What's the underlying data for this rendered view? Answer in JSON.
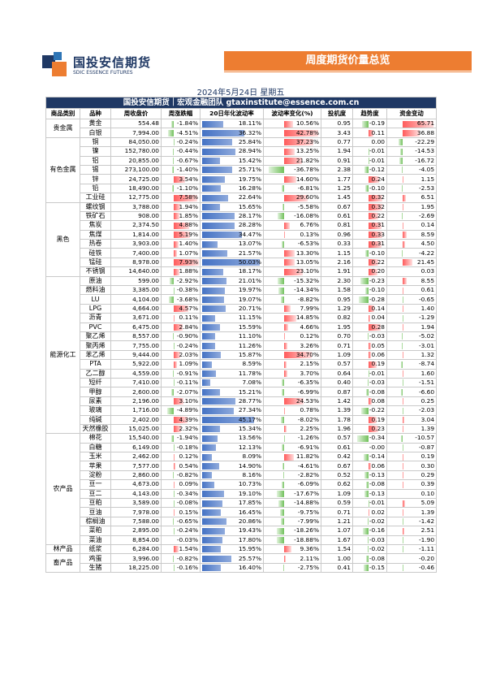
{
  "header": {
    "logo_cn": "国投安信期货",
    "logo_en": "SDIC ESSENCE FUTURES",
    "banner": "周度期货价量总览"
  },
  "date": "2024年5月24日 星期五",
  "table": {
    "caption": "国投安信期货｜宏观金融团队 gtaxinstitute@essence.com.cn",
    "columns": [
      "商品类别",
      "品种",
      "周收盘价",
      "周涨跌幅",
      "20日年化波动率",
      "波动率变化(%)",
      "投机度",
      "趋势度",
      "资金变动"
    ],
    "groups": [
      {
        "category": "贵金属",
        "rows": [
          [
            "黄金",
            "554.48",
            "-1.84%",
            "18.11%",
            "10.56%",
            "0.95",
            "-0.19",
            "65.71"
          ],
          [
            "白银",
            "7,994.00",
            "-4.51%",
            "36.32%",
            "42.78%",
            "3.43",
            "0.11",
            "36.88"
          ]
        ]
      },
      {
        "category": "有色金属",
        "rows": [
          [
            "铜",
            "84,050.00",
            "-0.24%",
            "25.84%",
            "37.23%",
            "0.77",
            "0.00",
            "-22.29"
          ],
          [
            "镍",
            "152,780.00",
            "-0.44%",
            "28.94%",
            "13.25%",
            "1.94",
            "-0.01",
            "-14.53"
          ],
          [
            "铝",
            "20,855.00",
            "-0.67%",
            "15.42%",
            "21.82%",
            "0.91",
            "-0.01",
            "-16.72"
          ],
          [
            "锡",
            "273,100.00",
            "-1.40%",
            "25.71%",
            "-36.78%",
            "2.38",
            "-0.12",
            "-4.05"
          ],
          [
            "锌",
            "24,725.00",
            "3.54%",
            "19.75%",
            "14.60%",
            "1.77",
            "0.24",
            "1.15"
          ],
          [
            "铅",
            "18,490.00",
            "-1.10%",
            "16.28%",
            "-6.81%",
            "1.25",
            "-0.10",
            "-2.53"
          ],
          [
            "工业硅",
            "12,775.00",
            "7.58%",
            "22.64%",
            "29.60%",
            "1.45",
            "0.32",
            "6.51"
          ]
        ]
      },
      {
        "category": "黑色",
        "rows": [
          [
            "螺纹钢",
            "3,788.00",
            "1.94%",
            "15.65%",
            "-5.58%",
            "0.67",
            "0.32",
            "1.95"
          ],
          [
            "铁矿石",
            "908.00",
            "1.85%",
            "28.17%",
            "-16.08%",
            "0.61",
            "0.22",
            "-2.69"
          ],
          [
            "焦炭",
            "2,374.50",
            "4.88%",
            "28.28%",
            "6.76%",
            "0.81",
            "0.31",
            "0.14"
          ],
          [
            "焦煤",
            "1,814.00",
            "5.19%",
            "34.47%",
            "0.13%",
            "0.96",
            "0.33",
            "8.59"
          ],
          [
            "热卷",
            "3,903.00",
            "1.40%",
            "13.07%",
            "-6.53%",
            "0.33",
            "0.31",
            "4.50"
          ],
          [
            "硅铁",
            "7,400.00",
            "1.07%",
            "21.57%",
            "13.30%",
            "1.15",
            "-0.10",
            "-4.22"
          ],
          [
            "锰硅",
            "8,978.00",
            "7.93%",
            "50.03%",
            "13.05%",
            "2.16",
            "0.22",
            "21.45"
          ],
          [
            "不锈钢",
            "14,640.00",
            "1.88%",
            "18.17%",
            "23.10%",
            "1.91",
            "0.20",
            "0.03"
          ]
        ]
      },
      {
        "category": "能源化工",
        "rows": [
          [
            "原油",
            "599.00",
            "-2.92%",
            "21.01%",
            "-15.32%",
            "2.30",
            "-0.23",
            "8.55"
          ],
          [
            "燃料油",
            "3,385.00",
            "-0.38%",
            "19.97%",
            "-14.34%",
            "1.58",
            "-0.10",
            "0.61"
          ],
          [
            "LU",
            "4,104.00",
            "-3.68%",
            "19.07%",
            "-8.82%",
            "0.95",
            "-0.28",
            "-0.65"
          ],
          [
            "LPG",
            "4,664.00",
            "4.57%",
            "20.71%",
            "7.99%",
            "1.29",
            "0.14",
            "1.40"
          ],
          [
            "沥青",
            "3,671.00",
            "0.11%",
            "11.15%",
            "14.85%",
            "0.82",
            "0.04",
            "-1.29"
          ],
          [
            "PVC",
            "6,475.00",
            "2.84%",
            "15.59%",
            "4.66%",
            "1.95",
            "0.28",
            "1.94"
          ],
          [
            "聚乙烯",
            "8,557.00",
            "-0.90%",
            "11.10%",
            "0.12%",
            "0.70",
            "-0.03",
            "-5.02"
          ],
          [
            "聚丙烯",
            "7,755.00",
            "-0.24%",
            "11.26%",
            "3.26%",
            "0.71",
            "0.05",
            "-3.01"
          ],
          [
            "苯乙烯",
            "9,444.00",
            "2.03%",
            "15.87%",
            "34.70%",
            "1.09",
            "0.06",
            "1.32"
          ],
          [
            "PTA",
            "5,922.00",
            "1.09%",
            "8.59%",
            "2.15%",
            "0.57",
            "0.19",
            "-8.74"
          ],
          [
            "乙二醇",
            "4,559.00",
            "-0.91%",
            "11.78%",
            "3.70%",
            "0.64",
            "-0.01",
            "1.60"
          ],
          [
            "短纤",
            "7,410.00",
            "-0.11%",
            "7.08%",
            "-6.35%",
            "0.40",
            "-0.03",
            "-1.51"
          ],
          [
            "甲醇",
            "2,600.00",
            "-2.07%",
            "15.21%",
            "-6.99%",
            "0.87",
            "-0.08",
            "-6.60"
          ],
          [
            "尿素",
            "2,196.00",
            "3.10%",
            "28.77%",
            "24.53%",
            "1.42",
            "0.08",
            "0.25"
          ],
          [
            "玻璃",
            "1,716.00",
            "-4.89%",
            "27.34%",
            "0.78%",
            "1.39",
            "-0.22",
            "-2.03"
          ],
          [
            "纯碱",
            "2,402.00",
            "4.39%",
            "45.17%",
            "-8.02%",
            "1.78",
            "0.19",
            "3.04"
          ],
          [
            "天然橡胶",
            "15,025.00",
            "2.32%",
            "15.34%",
            "2.25%",
            "1.96",
            "0.23",
            "1.39"
          ]
        ]
      },
      {
        "category": "农产品",
        "rows": [
          [
            "棉花",
            "15,540.00",
            "-1.94%",
            "13.56%",
            "-1.26%",
            "0.57",
            "-0.34",
            "-10.57"
          ],
          [
            "白糖",
            "6,149.00",
            "-0.18%",
            "12.13%",
            "-6.91%",
            "0.61",
            "-0.00",
            "-0.87"
          ],
          [
            "玉米",
            "2,462.00",
            "0.12%",
            "8.09%",
            "11.82%",
            "0.42",
            "-0.14",
            "0.19"
          ],
          [
            "苹果",
            "7,577.00",
            "0.54%",
            "14.90%",
            "-4.61%",
            "0.67",
            "0.06",
            "0.30"
          ],
          [
            "淀粉",
            "2,860.00",
            "-0.82%",
            "8.16%",
            "-2.82%",
            "0.52",
            "-0.13",
            "0.29"
          ],
          [
            "豆一",
            "4,673.00",
            "0.09%",
            "10.73%",
            "-6.09%",
            "0.62",
            "-0.08",
            "0.39"
          ],
          [
            "豆二",
            "4,143.00",
            "-0.34%",
            "19.10%",
            "-17.67%",
            "1.09",
            "-0.13",
            "0.10"
          ],
          [
            "豆粕",
            "3,589.00",
            "-0.08%",
            "17.85%",
            "-14.88%",
            "0.59",
            "-0.01",
            "5.09"
          ],
          [
            "豆油",
            "7,978.00",
            "0.15%",
            "16.45%",
            "-9.75%",
            "0.71",
            "0.02",
            "1.39"
          ],
          [
            "棕榈油",
            "7,588.00",
            "-0.65%",
            "20.86%",
            "-7.99%",
            "1.21",
            "-0.02",
            "-1.42"
          ],
          [
            "菜粕",
            "2,895.00",
            "-0.24%",
            "19.43%",
            "-18.26%",
            "1.07",
            "-0.16",
            "2.51"
          ],
          [
            "菜油",
            "8,854.00",
            "-0.03%",
            "17.80%",
            "-18.88%",
            "1.67",
            "-0.03",
            "-1.90"
          ]
        ]
      },
      {
        "category": "林产品",
        "rows": [
          [
            "纸浆",
            "6,284.00",
            "1.54%",
            "15.95%",
            "9.36%",
            "1.54",
            "-0.02",
            "-1.11"
          ]
        ]
      },
      {
        "category": "畜产品",
        "rows": [
          [
            "鸡蛋",
            "3,996.00",
            "-0.82%",
            "25.57%",
            "2.11%",
            "1.00",
            "-0.08",
            "-0.20"
          ],
          [
            "生猪",
            "18,225.00",
            "-0.16%",
            "16.40%",
            "-2.75%",
            "0.41",
            "-0.15",
            "-0.46"
          ]
        ]
      }
    ]
  }
}
